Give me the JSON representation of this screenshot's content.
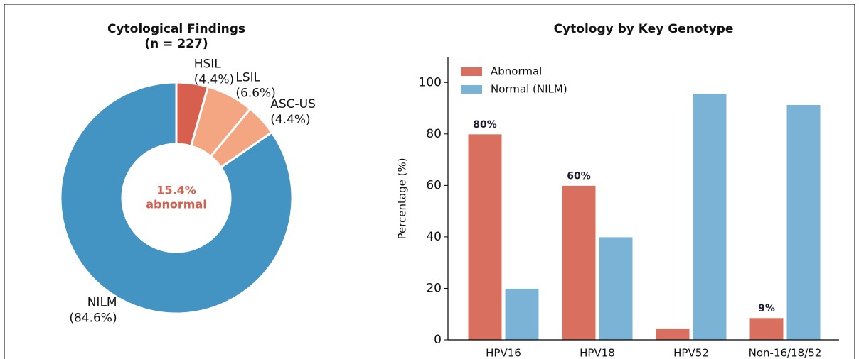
{
  "chart_data": [
    {
      "type": "pie",
      "title": "Cytological Findings",
      "subtitle": "(n = 227)",
      "categories": [
        "HSIL",
        "LSIL",
        "ASC-US",
        "NILM"
      ],
      "values": [
        4.4,
        6.6,
        4.4,
        84.6
      ],
      "value_labels": [
        "(4.4%)",
        "(6.6%)",
        "(4.4%)",
        "(84.6%)"
      ],
      "colors": [
        "#d6604d",
        "#f4a582",
        "#f4a582",
        "#4393c3"
      ],
      "donut": true,
      "center_label": [
        "15.4%",
        "abnormal"
      ]
    },
    {
      "type": "bar",
      "title": "Cytology by Key Genotype",
      "ylabel": "Percentage (%)",
      "categories": [
        "HPV16",
        "HPV18",
        "HPV52",
        "Non-16/18/52"
      ],
      "series": [
        {
          "name": "Abnormal",
          "color": "#d9705f",
          "values": [
            80,
            60,
            4.3,
            8.6
          ],
          "value_labels": [
            "80%",
            "60%",
            null,
            "9%"
          ]
        },
        {
          "name": "Normal (NILM)",
          "color": "#7bb3d6",
          "values": [
            20,
            40,
            95.7,
            91.4
          ]
        }
      ],
      "ylim": [
        0,
        110
      ],
      "yticks": [
        0,
        20,
        40,
        60,
        80,
        100
      ],
      "grid": false,
      "legend": "upper left"
    }
  ]
}
